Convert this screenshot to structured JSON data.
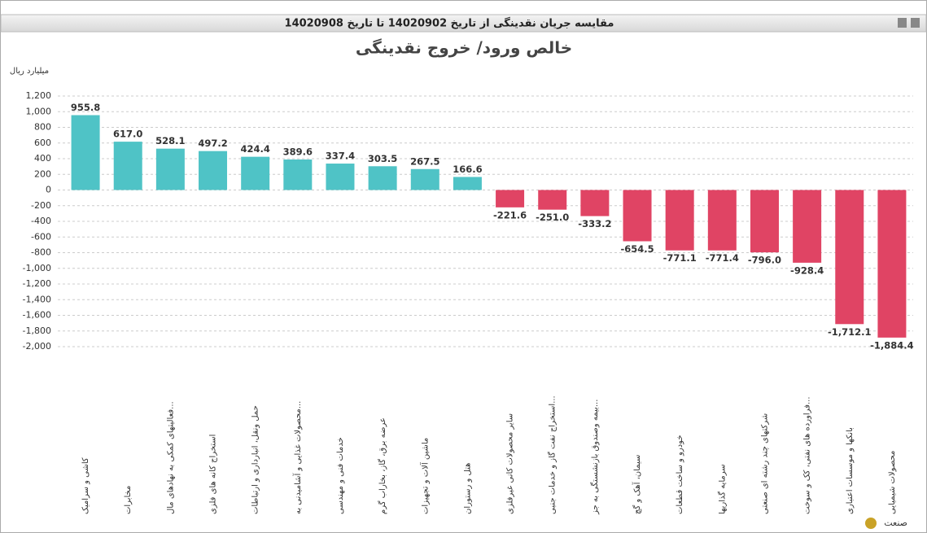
{
  "header": {
    "title": "مقایسه جریان نقدینگی از تاریخ 14020902 تا تاریخ 14020908"
  },
  "chart_data": {
    "type": "bar",
    "title": "خالص ورود/ خروج نقدینگی",
    "y_label": "میلیارد ریال",
    "x_label": "صنعت",
    "categories": [
      "کاشی و سرامیک",
      "مخابرات",
      "فعالیتهای کمکی به نهادهای مال...",
      "استخراج کانه های فلزی",
      "حمل ونقل، انبارداری و ارتباطات",
      "محصولات غذایی و آشامیدنی به...",
      "خدمات فنی و مهندسی",
      "عرضه برق، گاز، بخاراب گرم",
      "ماشین آلات و تجهیزات",
      "هتل و رستوران",
      "سایر محصولات کانی غیرفلزی",
      "استخراج نفت گاز و خدمات جنبی...",
      "بیمه وصندوق بازنشستگی به جز...",
      "سیمان، آهک و گچ",
      "خودرو و ساخت قطعات",
      "سرمایه گذاریها",
      "شرکتهای چند رشته ای صنعتی",
      "فراورده های نفتی، کک و سوخت...",
      "بانکها و موسسات اعتباری",
      "محصولات شیمیایی"
    ],
    "values": [
      955.8,
      617.0,
      528.1,
      497.2,
      424.4,
      389.6,
      337.4,
      303.5,
      267.5,
      166.6,
      -221.6,
      -251.0,
      -333.2,
      -654.5,
      -771.1,
      -771.4,
      -796.0,
      -928.4,
      -1712.1,
      -1884.4
    ],
    "value_labels": [
      "955.8",
      "617.0",
      "528.1",
      "497.2",
      "424.4",
      "389.6",
      "337.4",
      "303.5",
      "267.5",
      "166.6",
      "-221.6",
      "-251.0",
      "-333.2",
      "-654.5",
      "-771.1",
      "-771.4",
      "-796.0",
      "-928.4",
      "-1,712.1",
      "-1,884.4"
    ],
    "positive_color": "#4fc3c6",
    "negative_color": "#e04464",
    "ylim": [
      -2000,
      1200
    ],
    "yticks": [
      {
        "value": 1200,
        "label": "1,200"
      },
      {
        "value": 1000,
        "label": "1,000"
      },
      800,
      600,
      400,
      200,
      0,
      -200,
      -400,
      -600,
      -800,
      {
        "value": -1000,
        "label": "-1,000"
      },
      {
        "value": -1200,
        "label": "-1,200"
      },
      {
        "value": -1400,
        "label": "-1,400"
      },
      {
        "value": -1600,
        "label": "-1,600"
      },
      {
        "value": -1800,
        "label": "-1,800"
      },
      {
        "value": -2000,
        "label": "-2,000"
      }
    ],
    "grid": true
  }
}
